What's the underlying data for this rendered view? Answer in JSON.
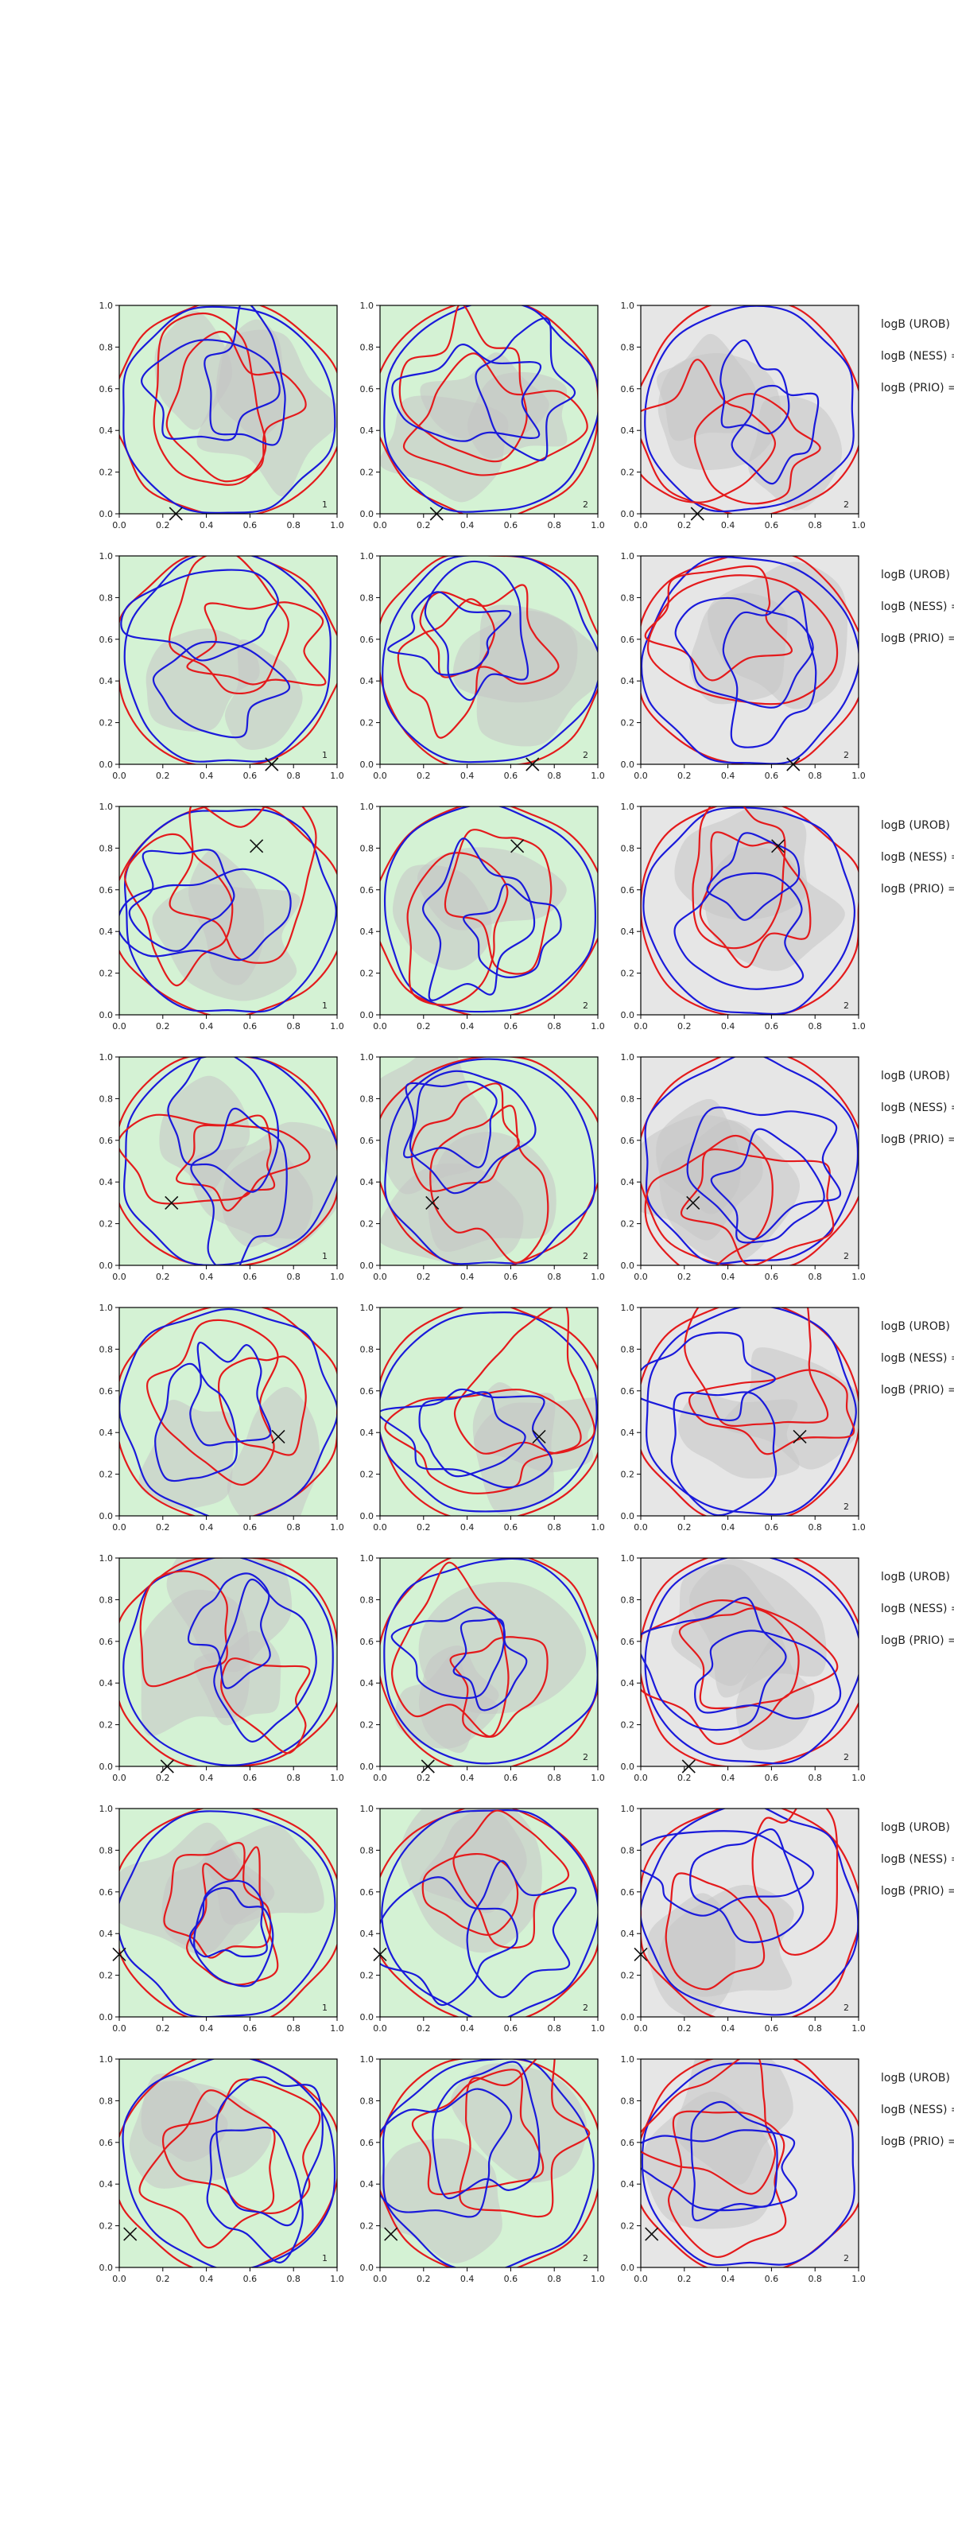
{
  "chart_data": {
    "type": "contour",
    "layout": {
      "rows": 8,
      "cols": 3
    },
    "xlim": [
      0,
      1
    ],
    "ylim": [
      0,
      1
    ],
    "x_ticks": [
      "0.0",
      "0.2",
      "0.4",
      "0.6",
      "0.8",
      "1.0"
    ],
    "y_ticks": [
      "0.0",
      "0.2",
      "0.4",
      "0.6",
      "0.8",
      "1.0"
    ],
    "x_tick_values": [
      0,
      0.2,
      0.4,
      0.6,
      0.8,
      1.0
    ],
    "y_tick_values": [
      0,
      0.2,
      0.4,
      0.6,
      0.8,
      1.0
    ],
    "column_backgrounds": [
      "#d4f2d4",
      "#d4f2d4",
      "#e6e6e6"
    ],
    "series_colors": {
      "red": "#e41a1c",
      "blue": "#1a1adb",
      "fill": "#c4c4c4"
    },
    "panel_numbers": [
      [
        "1",
        "2",
        "2"
      ],
      [
        "1",
        "2",
        "2"
      ],
      [
        "1",
        "2",
        "2"
      ],
      [
        "1",
        "2",
        "2"
      ],
      [
        "",
        "",
        "2"
      ],
      [
        "",
        "2",
        "2"
      ],
      [
        "1",
        "2",
        "2"
      ],
      [
        "1",
        "2",
        "2"
      ]
    ],
    "markers": [
      {
        "row": 1,
        "x": 0.26,
        "y": 0.0
      },
      {
        "row": 2,
        "x": 0.7,
        "y": 0.0
      },
      {
        "row": 3,
        "x": 0.63,
        "y": 0.81
      },
      {
        "row": 4,
        "x": 0.24,
        "y": 0.3
      },
      {
        "row": 5,
        "x": 0.73,
        "y": 0.38
      },
      {
        "row": 6,
        "x": 0.22,
        "y": 0.0
      },
      {
        "row": 7,
        "x": 0.0,
        "y": 0.3
      },
      {
        "row": 8,
        "x": 0.05,
        "y": 0.16
      }
    ],
    "side_labels": [
      "logB (UROB) =",
      "logB (NESS) =",
      "logB (PRIO) ="
    ]
  }
}
